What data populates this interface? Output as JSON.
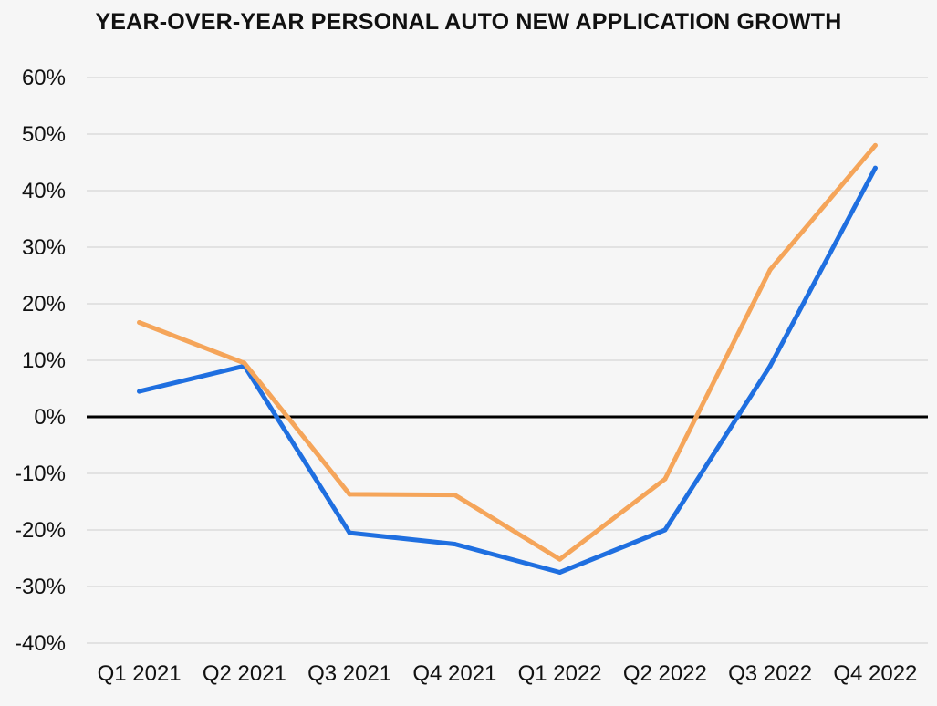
{
  "chart_data": {
    "type": "line",
    "title": "YEAR-OVER-YEAR PERSONAL AUTO NEW APPLICATION GROWTH",
    "xlabel": "",
    "ylabel": "",
    "categories": [
      "Q1 2021",
      "Q2 2021",
      "Q3 2021",
      "Q4 2021",
      "Q1 2022",
      "Q2 2022",
      "Q3 2022",
      "Q4 2022"
    ],
    "y_ticks": [
      60,
      50,
      40,
      30,
      20,
      10,
      0,
      -10,
      -20,
      -30,
      -40
    ],
    "y_tick_labels": [
      "60%",
      "50%",
      "40%",
      "30%",
      "20%",
      "10%",
      "0%",
      "-10%",
      "-20%",
      "-30%",
      "-40%"
    ],
    "ylim": [
      -40,
      60
    ],
    "grid": true,
    "legend": "none",
    "series": [
      {
        "color": "#1f6fe0",
        "values": [
          4.5,
          9,
          -20.5,
          -22.5,
          -27.5,
          -20,
          9,
          44
        ]
      },
      {
        "color": "#f5a55a",
        "values": [
          16.7,
          9.5,
          -13.7,
          -13.8,
          -25.2,
          -11,
          26,
          48
        ]
      }
    ]
  }
}
